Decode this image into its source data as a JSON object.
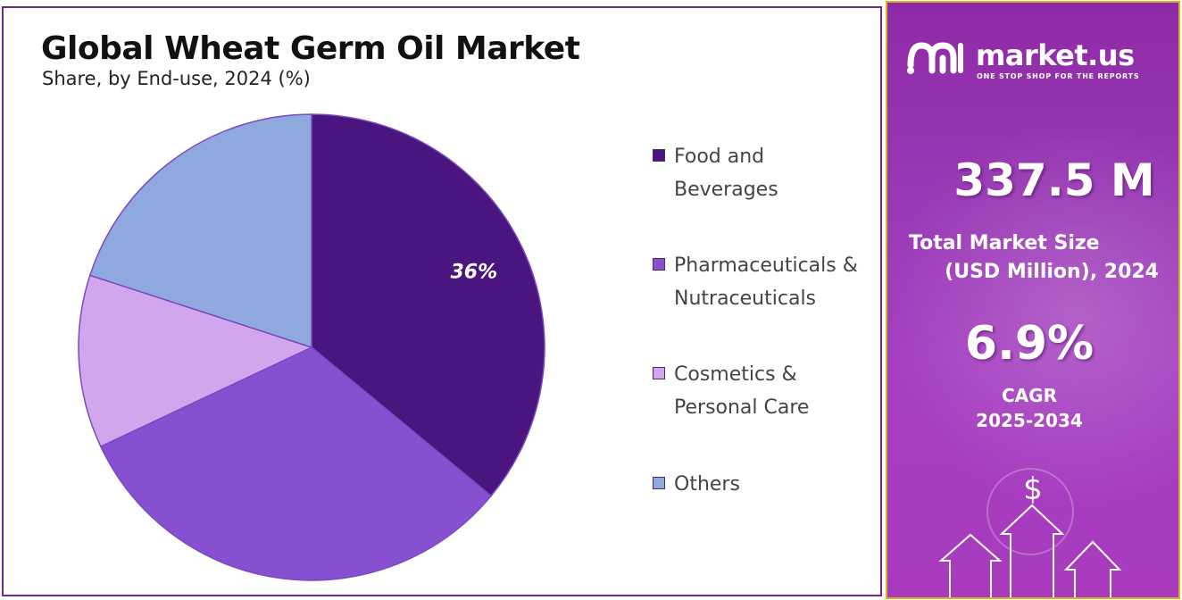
{
  "chart_data": {
    "type": "pie",
    "title": "Global Wheat Germ Oil Market",
    "subtitle": "Share, by End-use, 2024 (%)",
    "slices": [
      {
        "name": "Food and Beverages",
        "value": 36,
        "color": "#4b1580",
        "label": "36%"
      },
      {
        "name": "Pharmaceuticals & Nutraceuticals",
        "value": 32,
        "color": "#8750d0",
        "label": ""
      },
      {
        "name": "Cosmetics & Personal Care",
        "value": 12,
        "color": "#d2a6ed",
        "label": ""
      },
      {
        "name": "Others",
        "value": 20,
        "color": "#8fa8dd",
        "label": ""
      }
    ],
    "legend_position": "right"
  },
  "legend": [
    {
      "label": "Food and Beverages",
      "color": "#4b1580"
    },
    {
      "label": "Pharmaceuticals & Nutraceuticals",
      "color": "#8750d0"
    },
    {
      "label": "Cosmetics & Personal Care",
      "color": "#d2a6ed"
    },
    {
      "label": "Others",
      "color": "#8fa8dd"
    }
  ],
  "brand": {
    "name": "market.us",
    "tagline": "ONE STOP SHOP FOR THE REPORTS"
  },
  "stats": {
    "market_size_value": "337.5 M",
    "market_size_label_line1": "Total Market Size",
    "market_size_label_line2": "(USD Million), 2024",
    "cagr_value": "6.9%",
    "cagr_label": "CAGR",
    "cagr_period": "2025-2034"
  },
  "decor": {
    "currency_symbol": "$",
    "icon": "growth-arrows-icon"
  },
  "colors": {
    "panel_border": "#6a2a8c",
    "sidebar_border": "#d9b21f",
    "sidebar_bg": "#9a3ab6"
  }
}
